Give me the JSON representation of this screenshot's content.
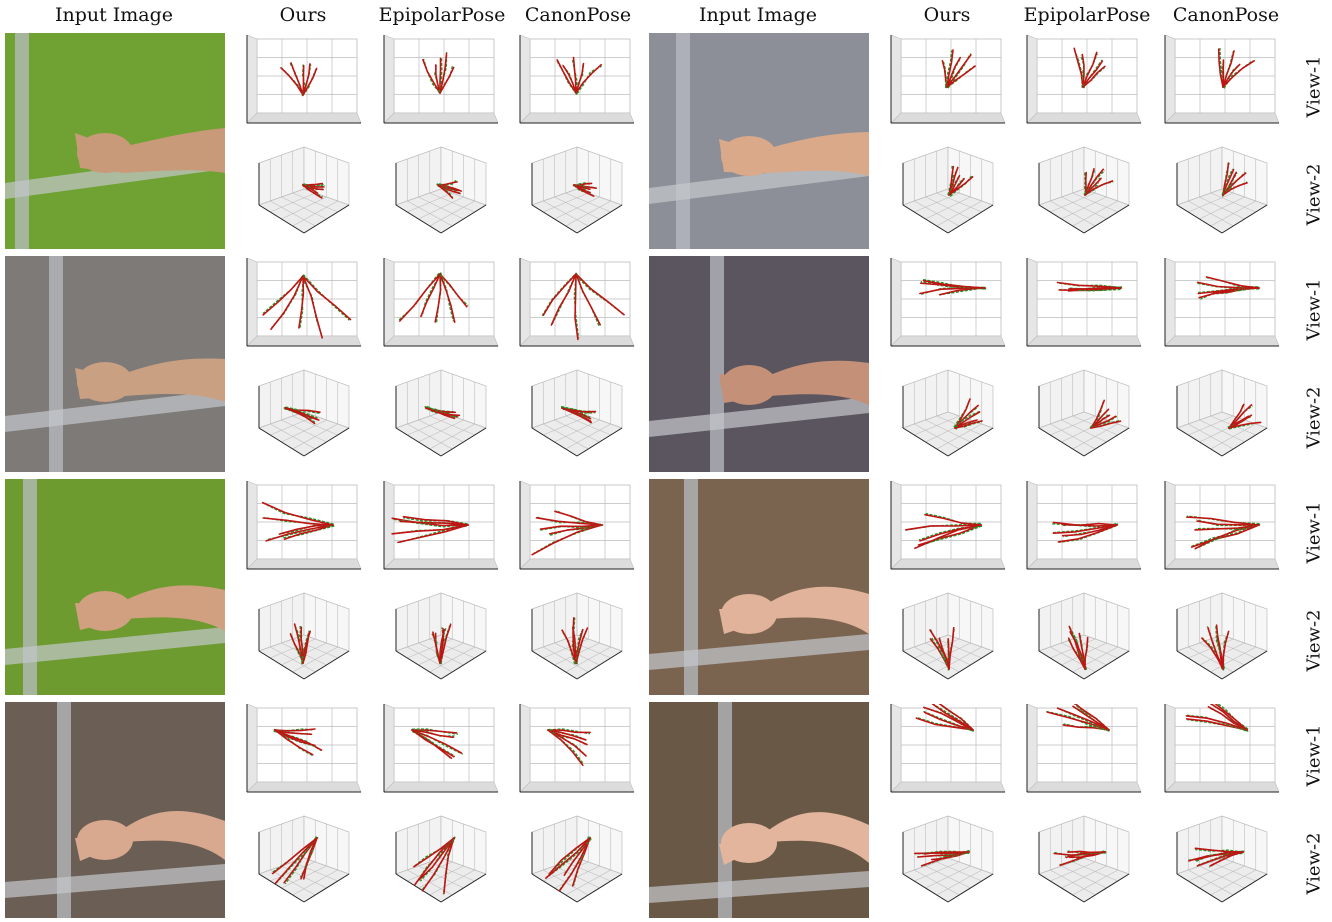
{
  "column_headers": [
    "Input Image",
    "Ours",
    "EpipolarPose",
    "CanonPose",
    "Input Image",
    "Ours",
    "EpipolarPose",
    "CanonPose"
  ],
  "row_labels": [
    "View-1",
    "View-2",
    "View-1",
    "View-2",
    "View-1",
    "View-2",
    "View-1",
    "View-2"
  ],
  "colors": {
    "prediction": "#c01414",
    "ground_truth": "#1f9a2a",
    "grid": "#bdbdbd",
    "axis": "#222222"
  },
  "photo_palettes": [
    {
      "bg": "#6fa233",
      "accent": "#c99a7a"
    },
    {
      "bg": "#8c8f98",
      "accent": "#d9a98a"
    },
    {
      "bg": "#7e7a78",
      "accent": "#caa083"
    },
    {
      "bg": "#5b5560",
      "accent": "#c49077"
    },
    {
      "bg": "#6d9b2f",
      "accent": "#d0a080"
    },
    {
      "bg": "#7a6450",
      "accent": "#e0b39a"
    },
    {
      "bg": "#6b5f55",
      "accent": "#d8a98f"
    },
    {
      "bg": "#6a5847",
      "accent": "#e2b59c"
    }
  ]
}
